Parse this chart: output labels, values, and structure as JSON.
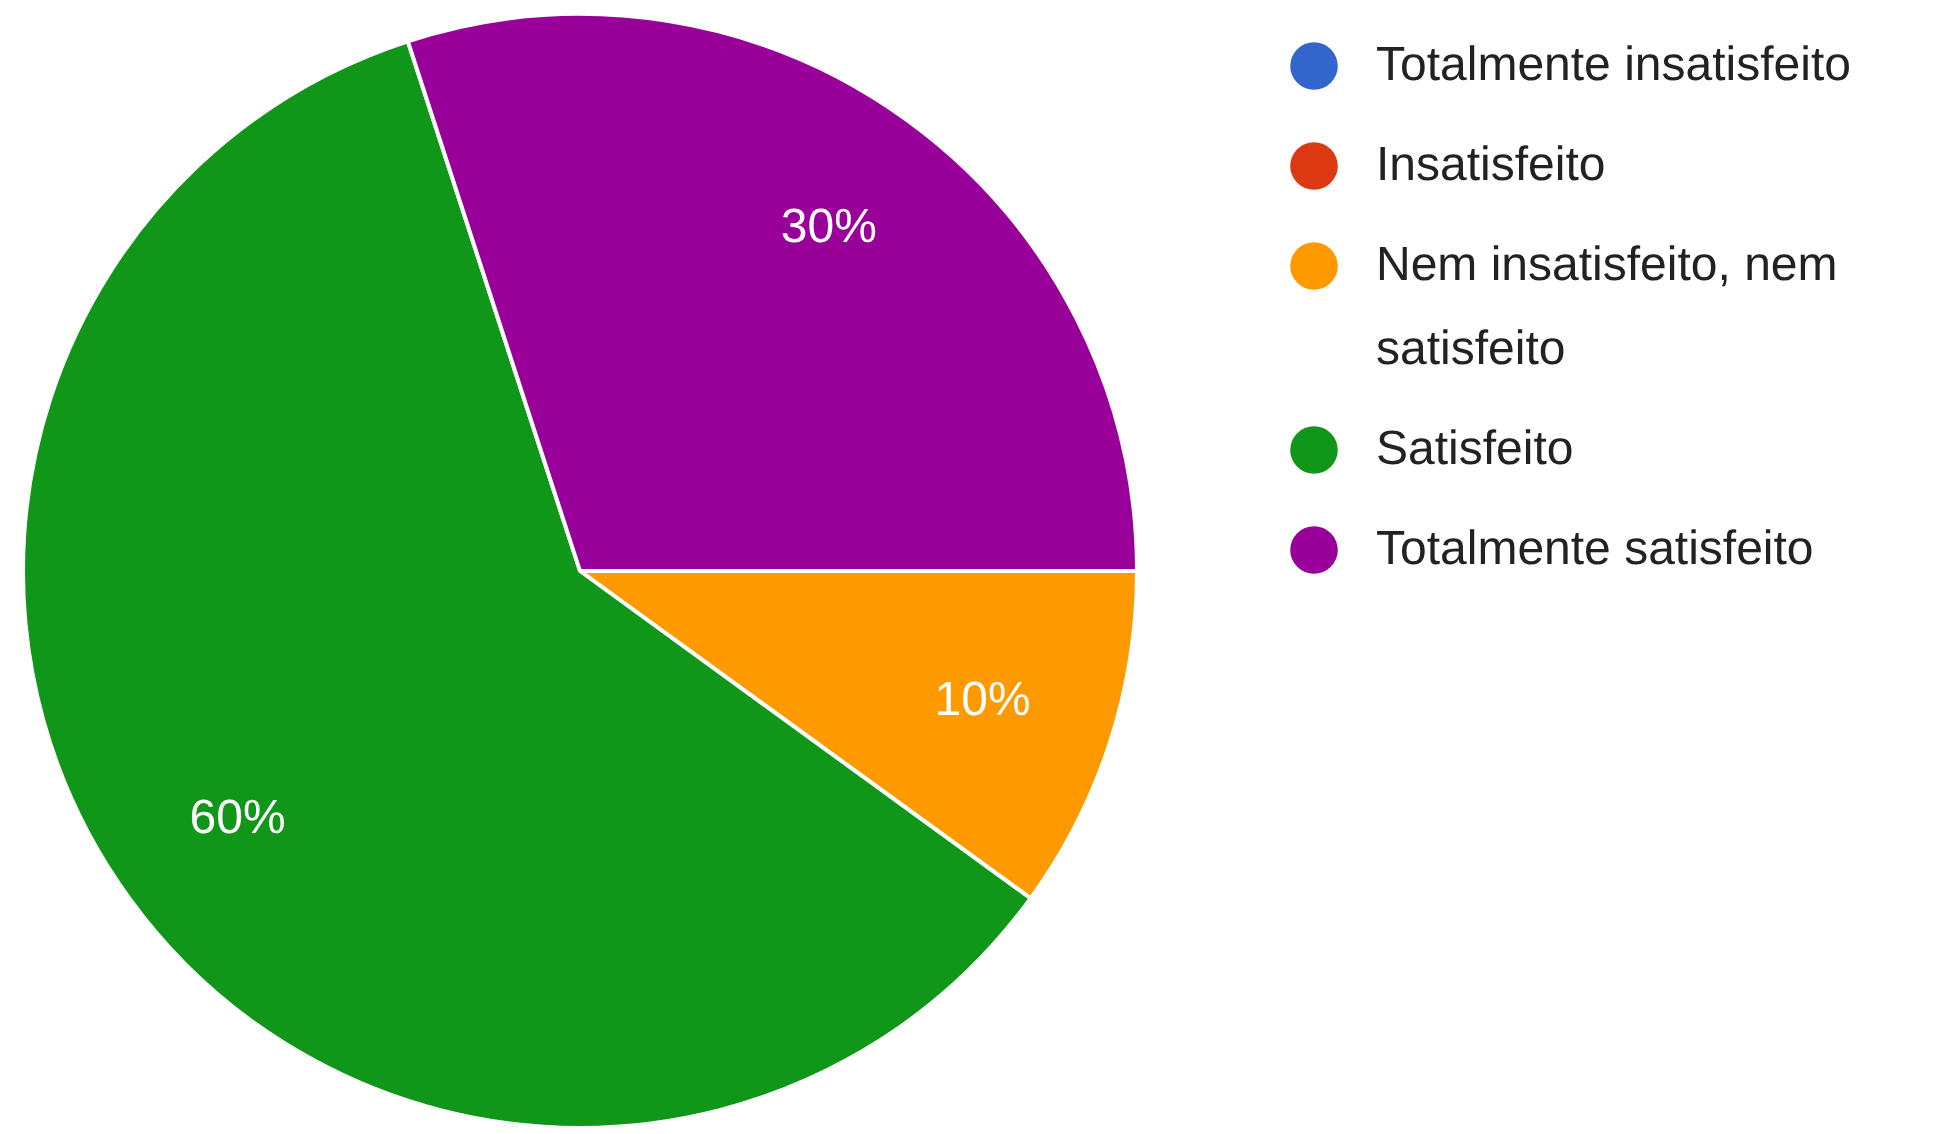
{
  "chart_data": {
    "type": "pie",
    "categories": [
      "Totalmente insatisfeito",
      "Insatisfeito",
      "Nem insatisfeito, nem satisfeito",
      "Satisfeito",
      "Totalmente satisfeito"
    ],
    "values": [
      0,
      0,
      10,
      60,
      30
    ],
    "colors": [
      "#3366cc",
      "#dc3912",
      "#ff9900",
      "#109618",
      "#990099"
    ],
    "value_labels": [
      null,
      null,
      "10%",
      "60%",
      "30%"
    ],
    "legend": "top right"
  }
}
